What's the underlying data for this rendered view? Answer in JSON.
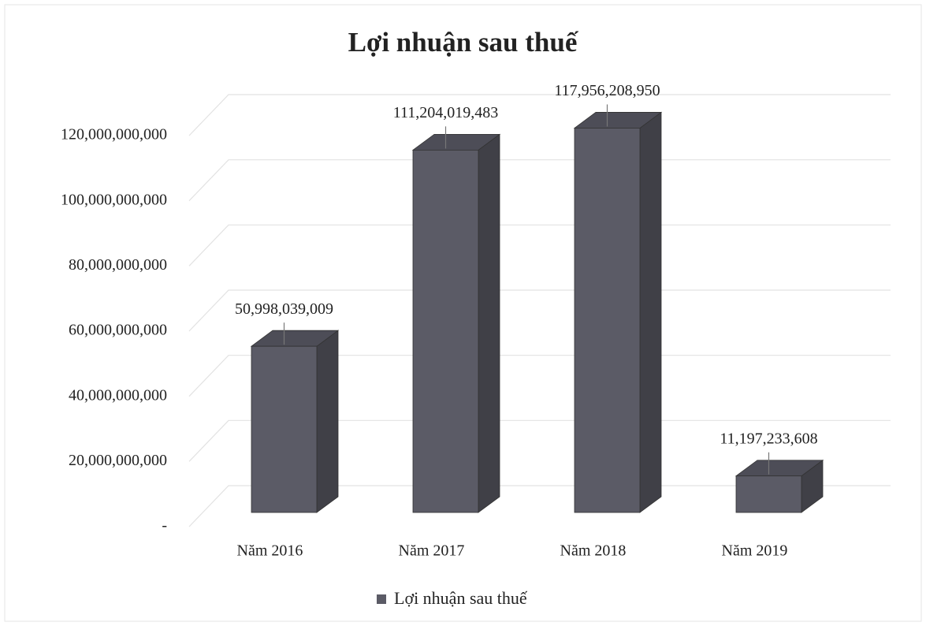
{
  "chart_data": {
    "type": "bar3d",
    "title": "Lợi nhuận sau thuế",
    "categories": [
      "Năm 2016",
      "Năm 2017",
      "Năm 2018",
      "Năm 2019"
    ],
    "series": [
      {
        "name": "Lợi nhuận sau thuế",
        "color": "#5b5b66",
        "values": [
          50998039009,
          111204019483,
          117956208950,
          11197233608
        ],
        "value_labels": [
          "50,998,039,009",
          "111,204,019,483",
          "117,956,208,950",
          "11,197,233,608"
        ]
      }
    ],
    "ylim": [
      0,
      120000000000
    ],
    "yticks": [
      {
        "value": 0,
        "label": "-"
      },
      {
        "value": 20000000000,
        "label": "20,000,000,000"
      },
      {
        "value": 40000000000,
        "label": "40,000,000,000"
      },
      {
        "value": 60000000000,
        "label": "60,000,000,000"
      },
      {
        "value": 80000000000,
        "label": "80,000,000,000"
      },
      {
        "value": 100000000000,
        "label": "100,000,000,000"
      },
      {
        "value": 120000000000,
        "label": "120,000,000,000"
      }
    ],
    "grid": true,
    "legend": "bottom"
  }
}
